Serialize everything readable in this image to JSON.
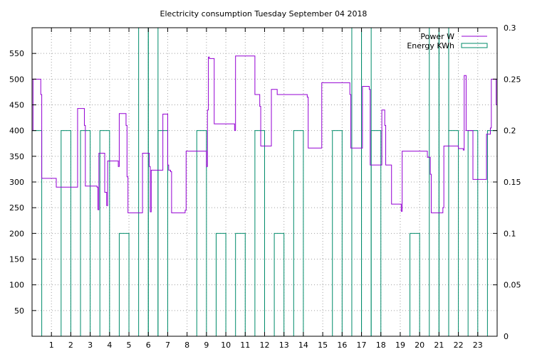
{
  "chart_data": {
    "type": "line",
    "title": "Electricity consumption Tuesday September 04 2018",
    "x_ticks": [
      "1",
      "2",
      "3",
      "4",
      "5",
      "6",
      "7",
      "8",
      "9",
      "10",
      "11",
      "12",
      "13",
      "14",
      "15",
      "16",
      "17",
      "18",
      "19",
      "20",
      "21",
      "22",
      "23"
    ],
    "xlim": [
      0,
      24
    ],
    "y_left": {
      "ticks": [
        "50",
        "100",
        "150",
        "200",
        "250",
        "300",
        "350",
        "400",
        "450",
        "500",
        "550"
      ],
      "ylim": [
        0,
        600
      ]
    },
    "y_right": {
      "ticks": [
        "0",
        "0.05",
        "0.1",
        "0.15",
        "0.2",
        "0.25",
        "0.3"
      ],
      "ylim": [
        0,
        0.3
      ]
    },
    "grid": true,
    "legend_position": "top-right",
    "series": [
      {
        "name": "Power W",
        "axis": "left",
        "color": "#9400d3",
        "style": "step-line",
        "points": [
          [
            0.0,
            400
          ],
          [
            0.05,
            500
          ],
          [
            0.4,
            500
          ],
          [
            0.45,
            470
          ],
          [
            0.5,
            307
          ],
          [
            1.2,
            307
          ],
          [
            1.25,
            290
          ],
          [
            2.3,
            290
          ],
          [
            2.35,
            443
          ],
          [
            2.65,
            443
          ],
          [
            2.7,
            410
          ],
          [
            2.75,
            292
          ],
          [
            3.3,
            292
          ],
          [
            3.35,
            290
          ],
          [
            3.4,
            246
          ],
          [
            3.45,
            356
          ],
          [
            3.7,
            356
          ],
          [
            3.75,
            280
          ],
          [
            3.8,
            280
          ],
          [
            3.85,
            254
          ],
          [
            3.9,
            341
          ],
          [
            4.4,
            341
          ],
          [
            4.45,
            330
          ],
          [
            4.5,
            433
          ],
          [
            4.8,
            433
          ],
          [
            4.85,
            410
          ],
          [
            4.9,
            310
          ],
          [
            4.95,
            240
          ],
          [
            5.65,
            240
          ],
          [
            5.7,
            356
          ],
          [
            6.0,
            356
          ],
          [
            6.05,
            330
          ],
          [
            6.1,
            242
          ],
          [
            6.15,
            323
          ],
          [
            6.7,
            323
          ],
          [
            6.75,
            432
          ],
          [
            6.95,
            432
          ],
          [
            7.0,
            333
          ],
          [
            7.05,
            323
          ],
          [
            7.15,
            320
          ],
          [
            7.2,
            240
          ],
          [
            7.85,
            240
          ],
          [
            7.9,
            245
          ],
          [
            7.95,
            360
          ],
          [
            8.95,
            360
          ],
          [
            9.0,
            330
          ],
          [
            9.05,
            440
          ],
          [
            9.1,
            543
          ],
          [
            9.15,
            540
          ],
          [
            9.35,
            540
          ],
          [
            9.4,
            413
          ],
          [
            10.4,
            413
          ],
          [
            10.45,
            400
          ],
          [
            10.5,
            545
          ],
          [
            11.45,
            545
          ],
          [
            11.5,
            470
          ],
          [
            11.7,
            470
          ],
          [
            11.75,
            447
          ],
          [
            11.8,
            370
          ],
          [
            12.3,
            370
          ],
          [
            12.35,
            480
          ],
          [
            12.6,
            480
          ],
          [
            12.65,
            470
          ],
          [
            14.15,
            470
          ],
          [
            14.2,
            465
          ],
          [
            14.25,
            366
          ],
          [
            14.9,
            366
          ],
          [
            14.95,
            493
          ],
          [
            16.35,
            493
          ],
          [
            16.4,
            470
          ],
          [
            16.45,
            366
          ],
          [
            17.0,
            366
          ],
          [
            17.05,
            486
          ],
          [
            17.35,
            486
          ],
          [
            17.4,
            480
          ],
          [
            17.45,
            333
          ],
          [
            18.0,
            333
          ],
          [
            18.05,
            440
          ],
          [
            18.15,
            440
          ],
          [
            18.2,
            410
          ],
          [
            18.25,
            333
          ],
          [
            18.5,
            333
          ],
          [
            18.55,
            257
          ],
          [
            19.0,
            257
          ],
          [
            19.05,
            243
          ],
          [
            19.1,
            360
          ],
          [
            20.35,
            360
          ],
          [
            20.4,
            348
          ],
          [
            20.5,
            348
          ],
          [
            20.55,
            315
          ],
          [
            20.6,
            240
          ],
          [
            21.15,
            240
          ],
          [
            21.2,
            250
          ],
          [
            21.25,
            370
          ],
          [
            21.95,
            370
          ],
          [
            22.0,
            365
          ],
          [
            22.2,
            365
          ],
          [
            22.25,
            362
          ],
          [
            22.3,
            507
          ],
          [
            22.35,
            507
          ],
          [
            22.4,
            400
          ],
          [
            22.7,
            400
          ],
          [
            22.75,
            305
          ],
          [
            23.4,
            305
          ],
          [
            23.45,
            393
          ],
          [
            23.6,
            393
          ],
          [
            23.65,
            405
          ],
          [
            23.7,
            500
          ],
          [
            23.9,
            500
          ],
          [
            23.95,
            450
          ],
          [
            24.0,
            390
          ]
        ]
      },
      {
        "name": "Energy KWh",
        "axis": "right",
        "color": "#008b6a",
        "style": "bars",
        "bars": [
          [
            0.0,
            0.2
          ],
          [
            1.5,
            0.2
          ],
          [
            2.5,
            0.2
          ],
          [
            3.5,
            0.2
          ],
          [
            4.5,
            0.1
          ],
          [
            5.5,
            0.3
          ],
          [
            6.0,
            0.3
          ],
          [
            6.5,
            0.2
          ],
          [
            8.5,
            0.2
          ],
          [
            9.5,
            0.1
          ],
          [
            10.5,
            0.1
          ],
          [
            11.5,
            0.2
          ],
          [
            12.5,
            0.1
          ],
          [
            13.5,
            0.2
          ],
          [
            15.5,
            0.2
          ],
          [
            16.5,
            0.3
          ],
          [
            17.0,
            0.3
          ],
          [
            17.5,
            0.2
          ],
          [
            19.5,
            0.1
          ],
          [
            20.5,
            0.3
          ],
          [
            21.0,
            0.3
          ],
          [
            21.5,
            0.2
          ],
          [
            22.5,
            0.2
          ],
          [
            23.5,
            0.2
          ]
        ]
      }
    ]
  }
}
